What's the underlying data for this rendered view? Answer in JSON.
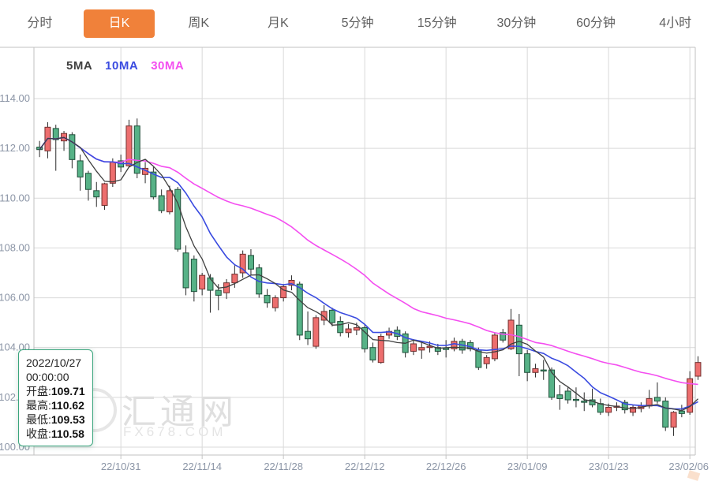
{
  "tabs": {
    "items": [
      {
        "label": "分时",
        "active": false
      },
      {
        "label": "日K",
        "active": true
      },
      {
        "label": "周K",
        "active": false
      },
      {
        "label": "月K",
        "active": false
      },
      {
        "label": "5分钟",
        "active": false
      },
      {
        "label": "15分钟",
        "active": false
      },
      {
        "label": "30分钟",
        "active": false
      },
      {
        "label": "60分钟",
        "active": false
      },
      {
        "label": "4小时",
        "active": false
      }
    ]
  },
  "tooltip": {
    "date": "2022/10/27",
    "time": "00:00:00",
    "rows": [
      {
        "label": "开盘:",
        "value": "109.71"
      },
      {
        "label": "最高:",
        "value": "110.62"
      },
      {
        "label": "最低:",
        "value": "109.53"
      },
      {
        "label": "收盘:",
        "value": "110.58"
      }
    ]
  },
  "watermark": {
    "cn": "汇通网",
    "en": "FX678.COM"
  },
  "chart_data": {
    "type": "candlestick",
    "title": "",
    "xlabel": "",
    "ylabel": "",
    "ylim": [
      100,
      114
    ],
    "grid": true,
    "legend_position": "top-left",
    "y_ticks": [
      "114.00",
      "112.00",
      "110.00",
      "108.00",
      "106.00",
      "104.00",
      "102.00",
      "100.00"
    ],
    "x_ticks": [
      {
        "index": 10,
        "label": "22/10/31"
      },
      {
        "index": 20,
        "label": "22/11/14"
      },
      {
        "index": 30,
        "label": "22/11/28"
      },
      {
        "index": 40,
        "label": "22/12/12"
      },
      {
        "index": 50,
        "label": "22/12/26"
      },
      {
        "index": 60,
        "label": "23/01/09"
      },
      {
        "index": 70,
        "label": "23/01/23"
      },
      {
        "index": 80,
        "label": "23/02/06"
      }
    ],
    "ma": [
      {
        "name": "5MA",
        "window": 5,
        "color": "#3f3f3f"
      },
      {
        "name": "10MA",
        "window": 10,
        "color": "#3a4be0"
      },
      {
        "name": "30MA",
        "window": 30,
        "color": "#f44ef0"
      }
    ],
    "colors": {
      "up_fill": "#ed6e6e",
      "up_border": "#72302f",
      "down_fill": "#57b287",
      "down_border": "#20503b",
      "wick": "#2a2a2a",
      "grid": "#d9d9d9",
      "frame": "#c2c2c2",
      "tick_text": "#8b95a6",
      "tab_accent": "#f0813a",
      "tooltip_border": "#3aa57d"
    },
    "candles": [
      [
        112.05,
        112.3,
        111.65,
        111.95
      ],
      [
        111.9,
        113.05,
        111.6,
        112.85
      ],
      [
        112.8,
        112.95,
        111.1,
        112.35
      ],
      [
        112.3,
        112.7,
        111.9,
        112.6
      ],
      [
        112.55,
        112.65,
        111.2,
        111.55
      ],
      [
        111.5,
        111.75,
        110.3,
        110.85
      ],
      [
        111.0,
        111.1,
        109.9,
        110.35
      ],
      [
        110.3,
        110.65,
        109.65,
        110.05
      ],
      [
        109.71,
        110.62,
        109.53,
        110.58
      ],
      [
        110.6,
        111.6,
        110.45,
        111.45
      ],
      [
        111.5,
        111.75,
        111.05,
        111.25
      ],
      [
        111.3,
        113.15,
        111.25,
        112.9
      ],
      [
        112.9,
        113.2,
        110.8,
        111.0
      ],
      [
        110.95,
        111.45,
        110.6,
        111.2
      ],
      [
        111.05,
        111.25,
        109.95,
        110.05
      ],
      [
        110.1,
        110.35,
        109.4,
        109.5
      ],
      [
        109.45,
        110.5,
        109.35,
        110.3
      ],
      [
        110.35,
        110.45,
        107.85,
        107.95
      ],
      [
        107.8,
        108.1,
        106.1,
        106.4
      ],
      [
        107.55,
        107.7,
        105.85,
        106.25
      ],
      [
        106.35,
        107.0,
        106.1,
        106.9
      ],
      [
        106.8,
        106.95,
        105.4,
        106.3
      ],
      [
        106.3,
        106.55,
        105.5,
        106.1
      ],
      [
        106.2,
        106.75,
        105.95,
        106.6
      ],
      [
        106.6,
        107.3,
        106.4,
        106.95
      ],
      [
        107.0,
        107.9,
        106.8,
        107.75
      ],
      [
        107.7,
        107.95,
        106.9,
        107.15
      ],
      [
        107.2,
        107.35,
        106.0,
        106.15
      ],
      [
        106.1,
        106.35,
        105.6,
        105.8
      ],
      [
        105.6,
        106.1,
        105.45,
        106.0
      ],
      [
        106.0,
        106.55,
        105.85,
        106.45
      ],
      [
        106.5,
        106.9,
        106.3,
        106.7
      ],
      [
        106.55,
        106.65,
        104.3,
        104.5
      ],
      [
        104.65,
        105.45,
        104.1,
        104.35
      ],
      [
        104.05,
        105.3,
        103.95,
        105.2
      ],
      [
        105.1,
        105.7,
        104.9,
        105.45
      ],
      [
        105.5,
        105.6,
        104.85,
        105.0
      ],
      [
        105.05,
        105.25,
        104.45,
        104.6
      ],
      [
        104.6,
        104.95,
        104.4,
        104.75
      ],
      [
        104.7,
        105.0,
        104.5,
        104.8
      ],
      [
        104.8,
        104.9,
        103.8,
        103.95
      ],
      [
        104.0,
        104.2,
        103.4,
        103.5
      ],
      [
        103.4,
        104.55,
        103.35,
        104.45
      ],
      [
        104.5,
        104.8,
        104.35,
        104.65
      ],
      [
        104.7,
        104.85,
        104.3,
        104.45
      ],
      [
        104.55,
        104.65,
        103.6,
        103.8
      ],
      [
        103.85,
        104.3,
        103.7,
        104.15
      ],
      [
        103.9,
        104.2,
        103.55,
        104.0
      ],
      [
        104.0,
        104.25,
        103.8,
        104.05
      ],
      [
        104.0,
        104.15,
        103.7,
        103.85
      ],
      [
        103.98,
        104.3,
        103.6,
        103.92
      ],
      [
        103.95,
        104.4,
        103.85,
        104.25
      ],
      [
        104.25,
        104.35,
        103.75,
        103.9
      ],
      [
        104.2,
        104.3,
        103.85,
        103.95
      ],
      [
        103.9,
        104.0,
        103.1,
        103.2
      ],
      [
        103.35,
        103.7,
        103.15,
        103.6
      ],
      [
        103.55,
        104.6,
        103.45,
        104.5
      ],
      [
        104.6,
        104.75,
        104.2,
        104.3
      ],
      [
        103.95,
        105.55,
        103.9,
        105.1
      ],
      [
        104.9,
        105.35,
        102.85,
        103.75
      ],
      [
        103.75,
        103.9,
        102.65,
        103.0
      ],
      [
        103.0,
        103.35,
        102.8,
        103.15
      ],
      [
        103.1,
        103.5,
        102.7,
        103.08
      ],
      [
        103.1,
        103.2,
        101.9,
        102.0
      ],
      [
        102.1,
        102.5,
        101.5,
        101.95
      ],
      [
        102.25,
        102.4,
        101.75,
        101.9
      ],
      [
        101.92,
        102.4,
        101.6,
        101.88
      ],
      [
        101.85,
        102.2,
        101.45,
        101.8
      ],
      [
        101.9,
        102.35,
        101.6,
        101.7
      ],
      [
        101.75,
        101.95,
        101.3,
        101.4
      ],
      [
        101.4,
        101.75,
        101.25,
        101.6
      ],
      [
        101.6,
        101.8,
        101.45,
        101.65
      ],
      [
        101.8,
        101.9,
        101.35,
        101.5
      ],
      [
        101.4,
        101.7,
        101.25,
        101.6
      ],
      [
        101.55,
        101.8,
        101.4,
        101.65
      ],
      [
        101.65,
        102.3,
        101.55,
        101.95
      ],
      [
        102.0,
        102.6,
        101.75,
        101.85
      ],
      [
        101.85,
        102.0,
        100.65,
        100.8
      ],
      [
        100.8,
        101.45,
        100.45,
        101.4
      ],
      [
        101.45,
        101.7,
        101.2,
        101.35
      ],
      [
        101.4,
        103.05,
        101.3,
        102.75
      ],
      [
        102.85,
        103.65,
        102.7,
        103.4
      ]
    ]
  }
}
